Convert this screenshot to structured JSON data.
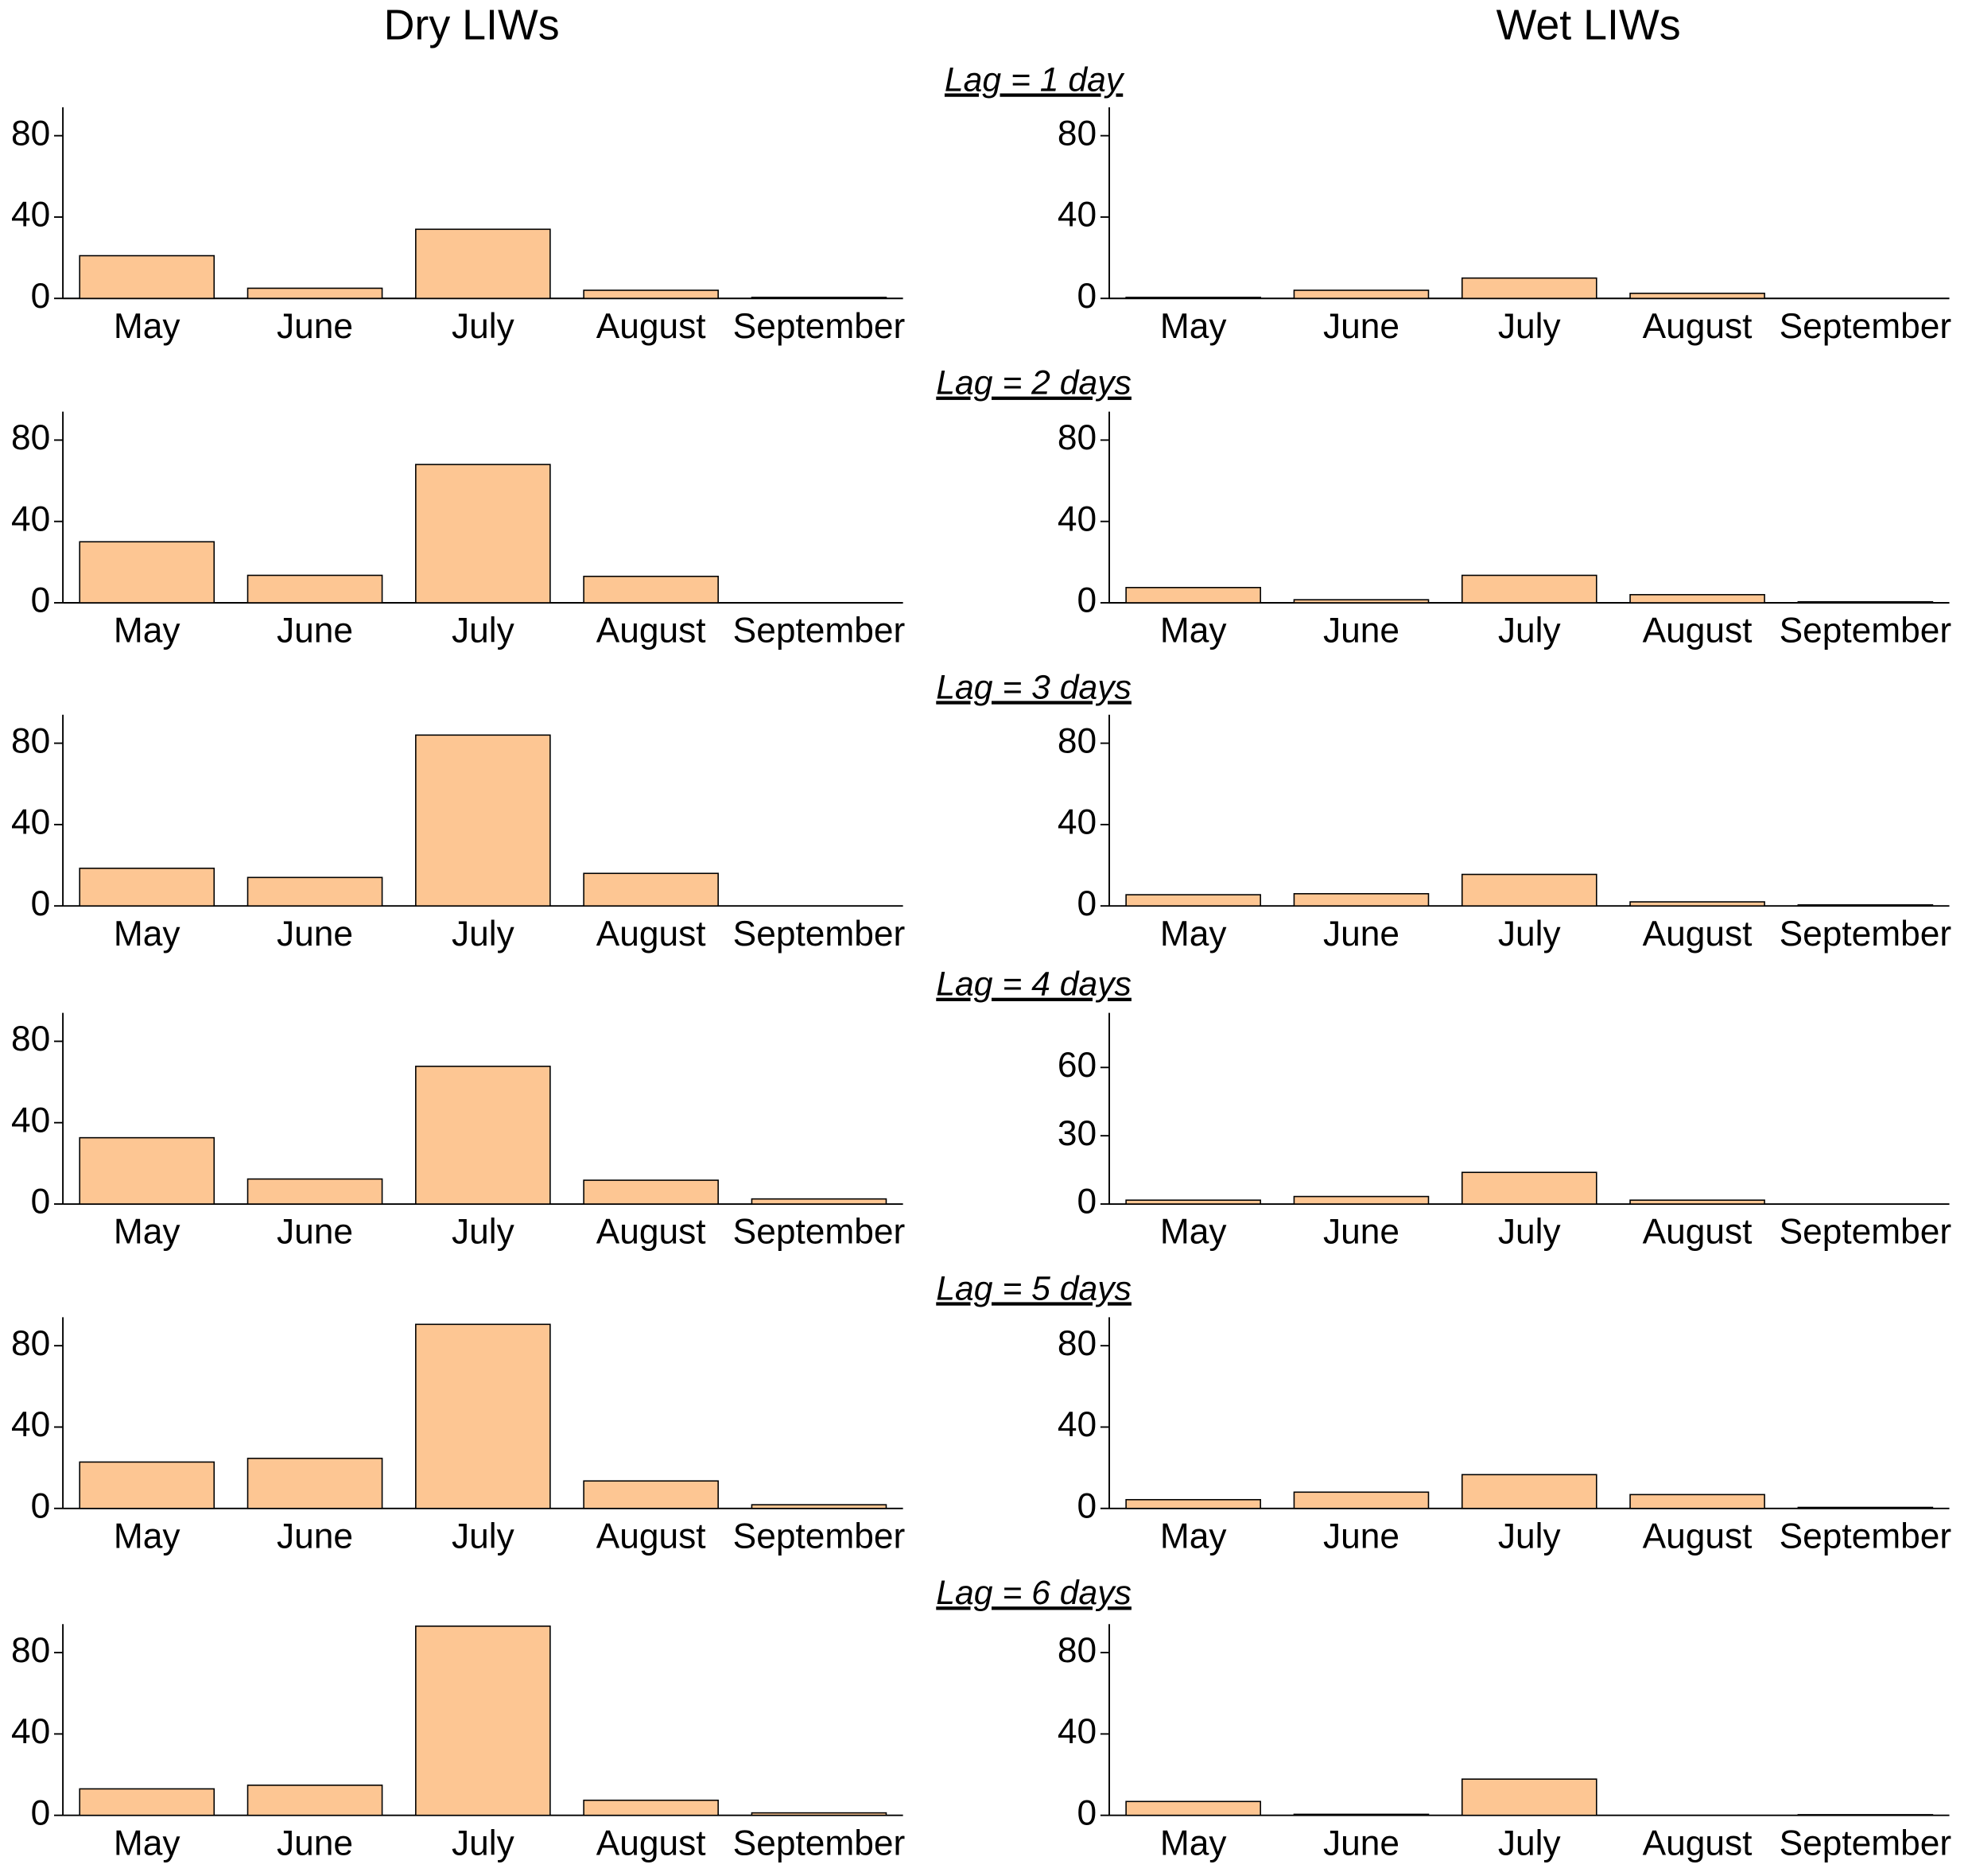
{
  "column_titles": [
    "Dry LIWs",
    "Wet LIWs"
  ],
  "row_titles": [
    "Lag = 1 day",
    "Lag = 2 days",
    "Lag = 3 days",
    "Lag = 4 days",
    "Lag = 5 days",
    "Lag = 6 days"
  ],
  "chart_data": [
    {
      "type": "bar",
      "categories": [
        "May",
        "June",
        "July",
        "August",
        "September"
      ],
      "values": [
        21,
        5,
        34,
        4,
        0.5
      ],
      "color": "#fdc693",
      "ylim": [
        0,
        94
      ],
      "yticks": [
        0,
        40,
        80
      ]
    },
    {
      "type": "bar",
      "categories": [
        "May",
        "June",
        "July",
        "August",
        "September"
      ],
      "values": [
        0.5,
        4,
        10,
        2.5,
        0
      ],
      "color": "#fdc693",
      "ylim": [
        0,
        94
      ],
      "yticks": [
        0,
        40,
        80
      ]
    },
    {
      "type": "bar",
      "categories": [
        "May",
        "June",
        "July",
        "August",
        "September"
      ],
      "values": [
        30,
        13.5,
        68,
        13,
        0
      ],
      "color": "#fdc693",
      "ylim": [
        0,
        94
      ],
      "yticks": [
        0,
        40,
        80
      ]
    },
    {
      "type": "bar",
      "categories": [
        "May",
        "June",
        "July",
        "August",
        "September"
      ],
      "values": [
        7.5,
        1.5,
        13.5,
        4,
        0.5
      ],
      "color": "#fdc693",
      "ylim": [
        0,
        94
      ],
      "yticks": [
        0,
        40,
        80
      ]
    },
    {
      "type": "bar",
      "categories": [
        "May",
        "June",
        "July",
        "August",
        "September"
      ],
      "values": [
        18.5,
        14,
        84,
        16,
        0
      ],
      "color": "#fdc693",
      "ylim": [
        0,
        94
      ],
      "yticks": [
        0,
        40,
        80
      ]
    },
    {
      "type": "bar",
      "categories": [
        "May",
        "June",
        "July",
        "August",
        "September"
      ],
      "values": [
        5.5,
        6,
        15.5,
        2,
        0.5
      ],
      "color": "#fdc693",
      "ylim": [
        0,
        94
      ],
      "yticks": [
        0,
        40,
        80
      ]
    },
    {
      "type": "bar",
      "categories": [
        "May",
        "June",
        "July",
        "August",
        "September"
      ],
      "values": [
        32.6,
        12.3,
        67.7,
        11.7,
        2.5
      ],
      "color": "#fdc693",
      "ylim": [
        0,
        94
      ],
      "yticks": [
        0,
        40,
        80
      ]
    },
    {
      "type": "bar",
      "categories": [
        "May",
        "June",
        "July",
        "August",
        "September"
      ],
      "values": [
        1.7,
        3.3,
        13.9,
        1.7,
        0
      ],
      "color": "#fdc693",
      "ylim": [
        0,
        84
      ],
      "yticks": [
        0,
        30,
        60
      ]
    },
    {
      "type": "bar",
      "categories": [
        "May",
        "June",
        "July",
        "August",
        "September"
      ],
      "values": [
        22.8,
        24.6,
        90.5,
        13.5,
        1.8
      ],
      "color": "#fdc693",
      "ylim": [
        0,
        94
      ],
      "yticks": [
        0,
        40,
        80
      ]
    },
    {
      "type": "bar",
      "categories": [
        "May",
        "June",
        "July",
        "August",
        "September"
      ],
      "values": [
        4.3,
        8,
        16.6,
        6.8,
        0.5
      ],
      "color": "#fdc693",
      "ylim": [
        0,
        94
      ],
      "yticks": [
        0,
        40,
        80
      ]
    },
    {
      "type": "bar",
      "categories": [
        "May",
        "June",
        "July",
        "August",
        "September"
      ],
      "values": [
        13,
        14.8,
        93,
        7.4,
        1.2
      ],
      "color": "#fdc693",
      "ylim": [
        0,
        94
      ],
      "yticks": [
        0,
        40,
        80
      ]
    },
    {
      "type": "bar",
      "categories": [
        "May",
        "June",
        "July",
        "August",
        "September"
      ],
      "values": [
        6.8,
        0.5,
        17.8,
        0,
        0.3
      ],
      "color": "#fdc693",
      "ylim": [
        0,
        94
      ],
      "yticks": [
        0,
        40,
        80
      ]
    }
  ]
}
